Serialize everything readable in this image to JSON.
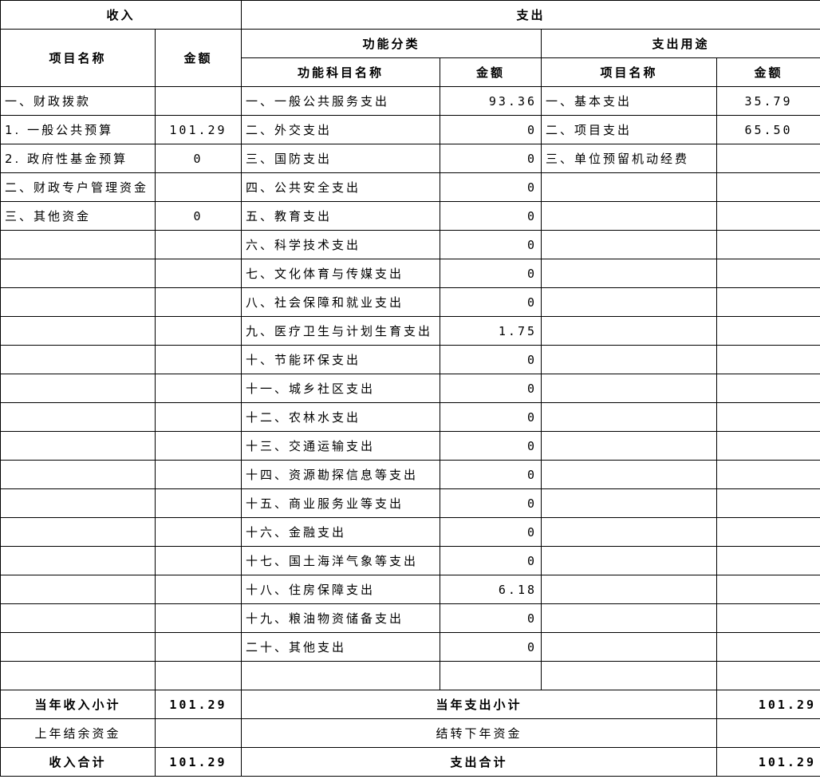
{
  "headers": {
    "income": "收入",
    "expense": "支出",
    "item_name": "项目名称",
    "amount": "金额",
    "function_category": "功能分类",
    "expense_usage": "支出用途",
    "function_subject_name": "功能科目名称"
  },
  "income_rows": [
    {
      "name": "一、财政拨款",
      "amount": ""
    },
    {
      "name": "1. 一般公共预算",
      "amount": "101.29"
    },
    {
      "name": "2. 政府性基金预算",
      "amount": "0"
    },
    {
      "name": "二、财政专户管理资金",
      "amount": ""
    },
    {
      "name": "三、其他资金",
      "amount": "0"
    }
  ],
  "function_rows": [
    {
      "name": "一、一般公共服务支出",
      "amount": "93.36"
    },
    {
      "name": "二、外交支出",
      "amount": "0"
    },
    {
      "name": "三、国防支出",
      "amount": "0"
    },
    {
      "name": "四、公共安全支出",
      "amount": "0"
    },
    {
      "name": "五、教育支出",
      "amount": "0"
    },
    {
      "name": "六、科学技术支出",
      "amount": "0"
    },
    {
      "name": "七、文化体育与传媒支出",
      "amount": "0"
    },
    {
      "name": "八、社会保障和就业支出",
      "amount": "0"
    },
    {
      "name": "九、医疗卫生与计划生育支出",
      "amount": "1.75"
    },
    {
      "name": "十、节能环保支出",
      "amount": "0"
    },
    {
      "name": "十一、城乡社区支出",
      "amount": "0"
    },
    {
      "name": "十二、农林水支出",
      "amount": "0"
    },
    {
      "name": "十三、交通运输支出",
      "amount": "0"
    },
    {
      "name": "十四、资源勘探信息等支出",
      "amount": "0"
    },
    {
      "name": "十五、商业服务业等支出",
      "amount": "0"
    },
    {
      "name": "十六、金融支出",
      "amount": "0"
    },
    {
      "name": "十七、国土海洋气象等支出",
      "amount": "0"
    },
    {
      "name": "十八、住房保障支出",
      "amount": "6.18"
    },
    {
      "name": "十九、粮油物资储备支出",
      "amount": "0"
    },
    {
      "name": "二十、其他支出",
      "amount": "0"
    }
  ],
  "usage_rows": [
    {
      "name": "一、基本支出",
      "amount": "35.79"
    },
    {
      "name": "二、项目支出",
      "amount": "65.50"
    },
    {
      "name": "三、单位预留机动经费",
      "amount": ""
    }
  ],
  "totals": {
    "income_subtotal_label": "当年收入小计",
    "income_subtotal": "101.29",
    "expense_subtotal_label": "当年支出小计",
    "expense_subtotal": "101.29",
    "prev_balance_label": "上年结余资金",
    "carry_forward_label": "结转下年资金",
    "income_total_label": "收入合计",
    "income_total": "101.29",
    "expense_total_label": "支出合计",
    "expense_total": "101.29"
  },
  "colors": {
    "blue_number": "#1a1acd",
    "green_number": "#1a7a1a"
  }
}
